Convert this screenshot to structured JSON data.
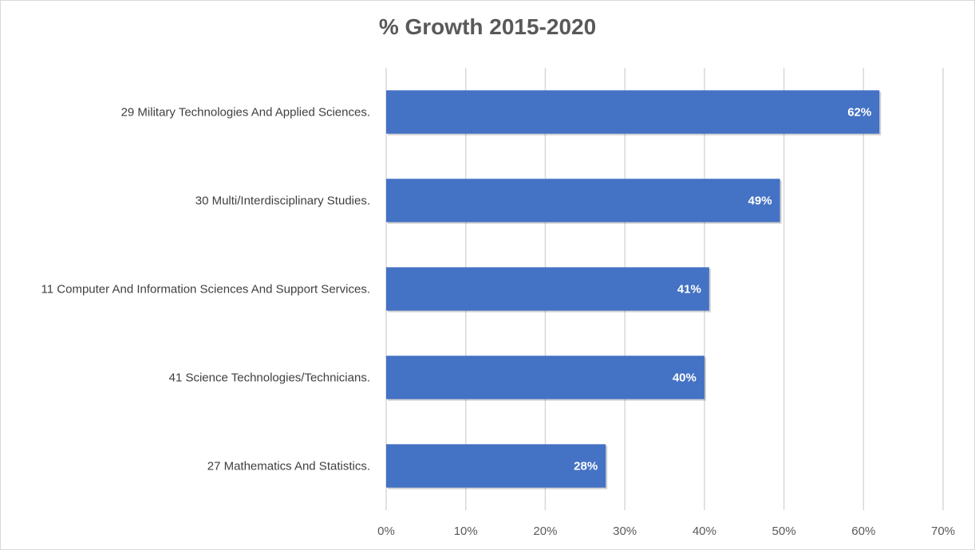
{
  "chart_data": {
    "type": "bar",
    "orientation": "horizontal",
    "title": "% Growth 2015-2020",
    "xlabel": "",
    "ylabel": "",
    "xlim": [
      0,
      70
    ],
    "x_ticks": [
      0,
      10,
      20,
      30,
      40,
      50,
      60,
      70
    ],
    "tick_format": "{v}%",
    "grid": true,
    "legend": "none",
    "bar_color": "#4472c4",
    "categories": [
      "29 Military Technologies And Applied Sciences.",
      "30 Multi/Interdisciplinary Studies.",
      "11 Computer And Information Sciences And Support Services.",
      "41 Science Technologies/Technicians.",
      "27 Mathematics And Statistics."
    ],
    "values": [
      62,
      49.5,
      40.6,
      40,
      27.6
    ],
    "data_labels": [
      "62%",
      "49%",
      "41%",
      "40%",
      "28%"
    ]
  }
}
